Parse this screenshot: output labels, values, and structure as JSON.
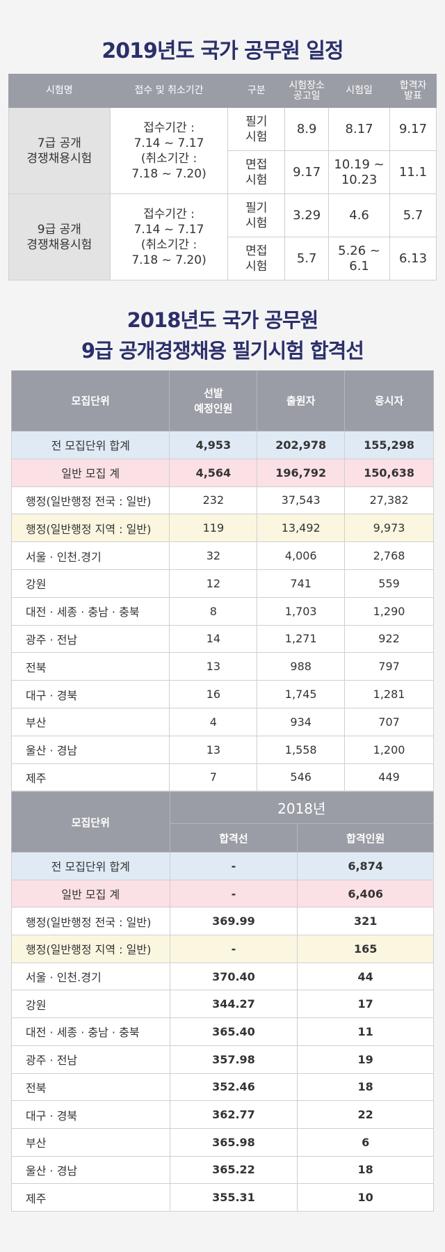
{
  "schedule": {
    "title": "2019년도 국가 공무원 일정",
    "headers": [
      "시험명",
      "접수 및 취소기간",
      "구분",
      "시험장소 공고일",
      "시험일",
      "합격자 발표"
    ],
    "header_lines": {
      "venue": [
        "시험장소",
        "공고일"
      ],
      "result": [
        "합격자",
        "발표"
      ]
    },
    "groups": [
      {
        "name": [
          "7급 공개",
          "경쟁채용시험"
        ],
        "period": [
          "접수기간 :",
          "7.14 ~ 7.17",
          "(취소기간 :",
          "7.18 ~ 7.20)"
        ],
        "rows": [
          {
            "type": [
              "필기",
              "시험"
            ],
            "venue": "8.9",
            "exam": [
              "8.17"
            ],
            "result": "9.17"
          },
          {
            "type": [
              "면접",
              "시험"
            ],
            "venue": "9.17",
            "exam": [
              "10.19 ~",
              "10.23"
            ],
            "result": "11.1"
          }
        ]
      },
      {
        "name": [
          "9급 공개",
          "경쟁채용시험"
        ],
        "period": [
          "접수기간 :",
          "7.14 ~ 7.17",
          "(취소기간 :",
          "7.18 ~ 7.20)"
        ],
        "rows": [
          {
            "type": [
              "필기",
              "시험"
            ],
            "venue": "3.29",
            "exam": [
              "4.6"
            ],
            "result": "5.7"
          },
          {
            "type": [
              "면접",
              "시험"
            ],
            "venue": "5.7",
            "exam": [
              "5.26 ~",
              "6.1"
            ],
            "result": "6.13"
          }
        ]
      }
    ]
  },
  "passline_title": [
    "2018년도 국가 공무원",
    "9급 공개경쟁채용 필기시험 합격선"
  ],
  "applicants": {
    "headers": {
      "unit": "모집단위",
      "quota": [
        "선발",
        "예정인원"
      ],
      "applied": "출원자",
      "took": "응시자"
    },
    "rows": [
      {
        "label": "전 모집단위 합계",
        "quota": "4,953",
        "applied": "202,978",
        "took": "155,298",
        "style": "total"
      },
      {
        "label": "일반 모집 계",
        "quota": "4,564",
        "applied": "196,792",
        "took": "150,638",
        "style": "general"
      },
      {
        "label": "행정(일반행정 전국 : 일반)",
        "quota": "232",
        "applied": "37,543",
        "took": "27,382",
        "style": ""
      },
      {
        "label": "행정(일반행정 지역 : 일반)",
        "quota": "119",
        "applied": "13,492",
        "took": "9,973",
        "style": "region"
      },
      {
        "label": "서울 · 인천.경기",
        "quota": "32",
        "applied": "4,006",
        "took": "2,768",
        "style": ""
      },
      {
        "label": "강원",
        "quota": "12",
        "applied": "741",
        "took": "559",
        "style": ""
      },
      {
        "label": "대전 · 세종 · 충남 · 충북",
        "quota": "8",
        "applied": "1,703",
        "took": "1,290",
        "style": ""
      },
      {
        "label": "광주 · 전남",
        "quota": "14",
        "applied": "1,271",
        "took": "922",
        "style": ""
      },
      {
        "label": "전북",
        "quota": "13",
        "applied": "988",
        "took": "797",
        "style": ""
      },
      {
        "label": "대구 · 경북",
        "quota": "16",
        "applied": "1,745",
        "took": "1,281",
        "style": ""
      },
      {
        "label": "부산",
        "quota": "4",
        "applied": "934",
        "took": "707",
        "style": ""
      },
      {
        "label": "울산 · 경남",
        "quota": "13",
        "applied": "1,558",
        "took": "1,200",
        "style": ""
      },
      {
        "label": "제주",
        "quota": "7",
        "applied": "546",
        "took": "449",
        "style": ""
      }
    ]
  },
  "passline": {
    "headers": {
      "unit": "모집단위",
      "year": "2018년",
      "cutoff": "합격선",
      "passed": "합격인원"
    },
    "rows": [
      {
        "label": "전 모집단위 합계",
        "cutoff": "-",
        "passed": "6,874",
        "style": "total"
      },
      {
        "label": "일반 모집 계",
        "cutoff": "-",
        "passed": "6,406",
        "style": "general"
      },
      {
        "label": "행정(일반행정 전국 : 일반)",
        "cutoff": "369.99",
        "passed": "321",
        "style": ""
      },
      {
        "label": "행정(일반행정 지역 : 일반)",
        "cutoff": "-",
        "passed": "165",
        "style": "region"
      },
      {
        "label": "서울 · 인천.경기",
        "cutoff": "370.40",
        "passed": "44",
        "style": ""
      },
      {
        "label": "강원",
        "cutoff": "344.27",
        "passed": "17",
        "style": ""
      },
      {
        "label": "대전 · 세종 · 충남 · 충북",
        "cutoff": "365.40",
        "passed": "11",
        "style": ""
      },
      {
        "label": "광주 · 전남",
        "cutoff": "357.98",
        "passed": "19",
        "style": ""
      },
      {
        "label": "전북",
        "cutoff": "352.46",
        "passed": "18",
        "style": ""
      },
      {
        "label": "대구 · 경북",
        "cutoff": "362.77",
        "passed": "22",
        "style": ""
      },
      {
        "label": "부산",
        "cutoff": "365.98",
        "passed": "6",
        "style": ""
      },
      {
        "label": "울산 · 경남",
        "cutoff": "365.22",
        "passed": "18",
        "style": ""
      },
      {
        "label": "제주",
        "cutoff": "355.31",
        "passed": "10",
        "style": ""
      }
    ]
  }
}
